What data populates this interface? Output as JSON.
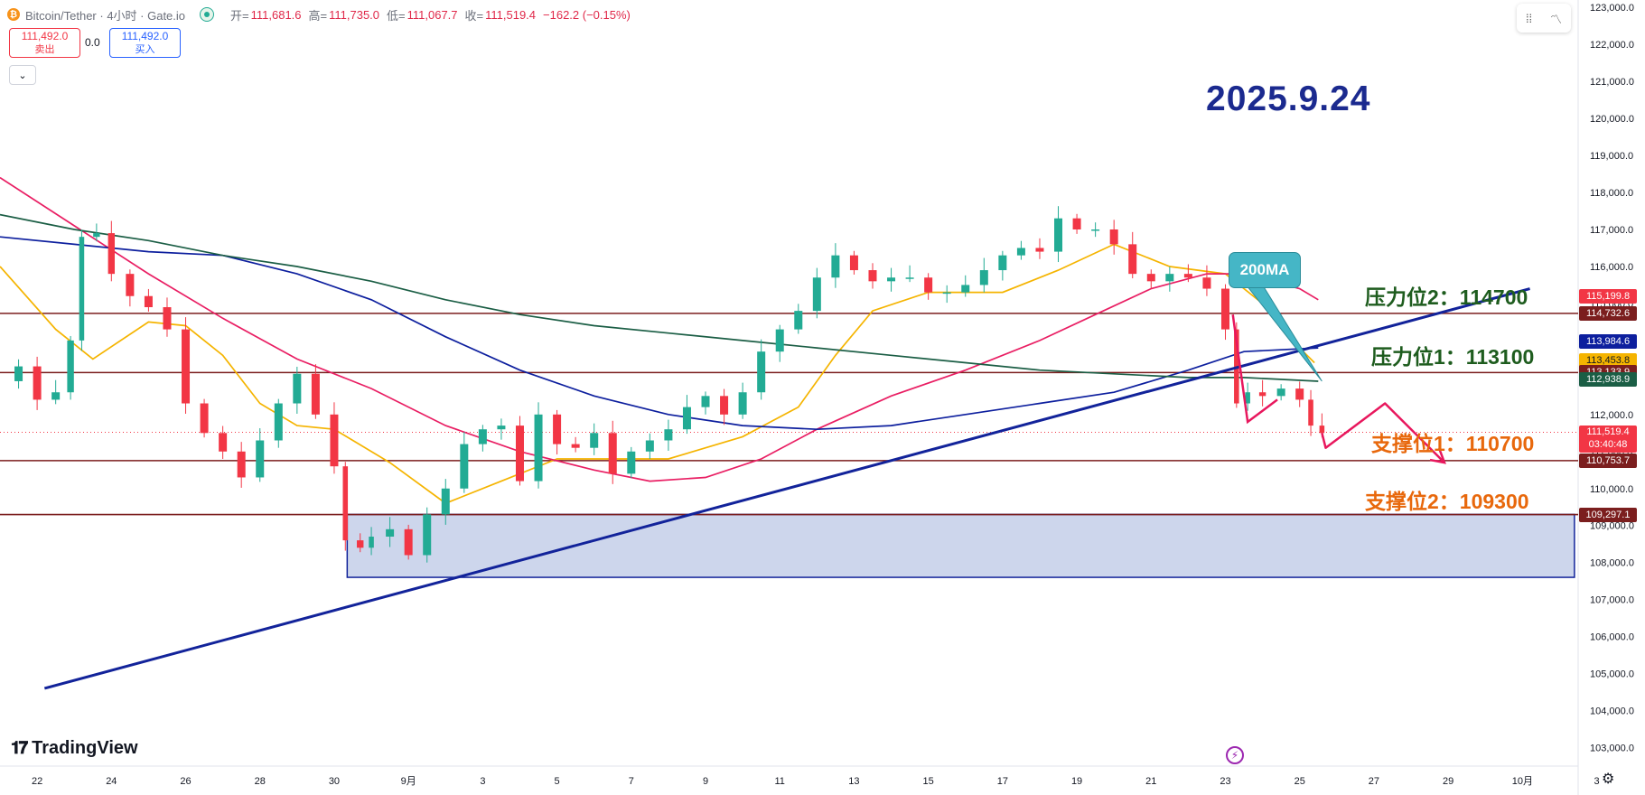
{
  "header": {
    "coin_symbol": "₿",
    "title": "Bitcoin/Tether · 4小时 · Gate.io",
    "open_label": "开=",
    "open": "111,681.6",
    "high_label": "高=",
    "high": "111,735.0",
    "low_label": "低=",
    "low": "111,067.7",
    "close_label": "收=",
    "close": "111,519.4",
    "change": "−162.2 (−0.15%)"
  },
  "trade": {
    "sell_price": "111,492.0",
    "sell_label": "卖出",
    "spread": "0.0",
    "buy_price": "111,492.0",
    "buy_label": "买入"
  },
  "overlay": {
    "date": "2025.9.24",
    "resistance2": "压力位2：114700",
    "resistance1": "压力位1：113100",
    "support1": "支撑位1：110700",
    "support2": "支撑位2：109300",
    "ma_callout": "200MA"
  },
  "brand": "TradingView",
  "colors": {
    "up": "#22ab94",
    "down": "#f23645",
    "ma20": "#f5b400",
    "ma50": "#e91e63",
    "ma100": "#0d1f9e",
    "ma200": "#1b5e45",
    "trendline": "#12239a",
    "level_line": "#7b1e1e",
    "zone_fill": "#cdd6ec",
    "annotation": "#e8175d"
  },
  "chart_data": {
    "type": "candlestick",
    "symbol": "BTC/USDT",
    "timeframe": "4小时",
    "ylim": [
      102500,
      123200
    ],
    "y_ticks": [
      103000,
      104000,
      105000,
      106000,
      107000,
      108000,
      109000,
      110000,
      111000,
      112000,
      113000,
      114000,
      115000,
      116000,
      117000,
      118000,
      119000,
      120000,
      121000,
      122000,
      123000
    ],
    "y_tick_labels": [
      "103,000.0",
      "104,000.0",
      "105,000.0",
      "106,000.0",
      "107,000.0",
      "108,000.0",
      "109,000.0",
      "110,000.0",
      "111,000.0",
      "112,000.0",
      "113,000.0",
      "114,000.0",
      "115,000.0",
      "116,000.0",
      "117,000.0",
      "118,000.0",
      "119,000.0",
      "120,000.0",
      "121,000.0",
      "122,000.0",
      "123,000.0"
    ],
    "x_tick_labels": [
      "22",
      "24",
      "26",
      "28",
      "30",
      "9月",
      "3",
      "5",
      "7",
      "9",
      "11",
      "13",
      "15",
      "17",
      "19",
      "21",
      "23",
      "25",
      "27",
      "29",
      "10月",
      "3"
    ],
    "x_range_days": [
      0,
      42.5
    ],
    "x_tick_days": [
      1,
      3,
      5,
      7,
      9,
      11,
      13,
      15,
      17,
      19,
      21,
      23,
      25,
      27,
      29,
      31,
      33,
      35,
      37,
      39,
      41,
      43
    ],
    "close_points": [
      [
        0,
        112900
      ],
      [
        0.5,
        113300
      ],
      [
        1,
        112400
      ],
      [
        1.5,
        112600
      ],
      [
        1.9,
        114000
      ],
      [
        2.2,
        116800
      ],
      [
        2.6,
        116900
      ],
      [
        3,
        115800
      ],
      [
        3.5,
        115200
      ],
      [
        4,
        114900
      ],
      [
        4.5,
        114300
      ],
      [
        5,
        112300
      ],
      [
        5.5,
        111500
      ],
      [
        6,
        111000
      ],
      [
        6.5,
        110300
      ],
      [
        7,
        111300
      ],
      [
        7.5,
        112300
      ],
      [
        8,
        113100
      ],
      [
        8.5,
        112000
      ],
      [
        9,
        110600
      ],
      [
        9.3,
        108600
      ],
      [
        9.7,
        108400
      ],
      [
        10,
        108700
      ],
      [
        10.5,
        108900
      ],
      [
        11,
        108200
      ],
      [
        11.5,
        109300
      ],
      [
        12,
        110000
      ],
      [
        12.5,
        111200
      ],
      [
        13,
        111600
      ],
      [
        13.5,
        111700
      ],
      [
        14,
        110200
      ],
      [
        14.5,
        112000
      ],
      [
        15,
        111200
      ],
      [
        15.5,
        111100
      ],
      [
        16,
        111500
      ],
      [
        16.5,
        110400
      ],
      [
        17,
        111000
      ],
      [
        17.5,
        111300
      ],
      [
        18,
        111600
      ],
      [
        18.5,
        112200
      ],
      [
        19,
        112500
      ],
      [
        19.5,
        112000
      ],
      [
        20,
        112600
      ],
      [
        20.5,
        113700
      ],
      [
        21,
        114300
      ],
      [
        21.5,
        114800
      ],
      [
        22,
        115700
      ],
      [
        22.5,
        116300
      ],
      [
        23,
        115900
      ],
      [
        23.5,
        115600
      ],
      [
        24,
        115700
      ],
      [
        24.5,
        115700
      ],
      [
        25,
        115300
      ],
      [
        25.5,
        115300
      ],
      [
        26,
        115500
      ],
      [
        26.5,
        115900
      ],
      [
        27,
        116300
      ],
      [
        27.5,
        116500
      ],
      [
        28,
        116400
      ],
      [
        28.5,
        117300
      ],
      [
        29,
        117000
      ],
      [
        29.5,
        117000
      ],
      [
        30,
        116600
      ],
      [
        30.5,
        115800
      ],
      [
        31,
        115600
      ],
      [
        31.5,
        115800
      ],
      [
        32,
        115700
      ],
      [
        32.5,
        115400
      ],
      [
        33,
        114300
      ],
      [
        33.3,
        112300
      ],
      [
        33.6,
        112600
      ],
      [
        34,
        112500
      ],
      [
        34.5,
        112700
      ],
      [
        35,
        112400
      ],
      [
        35.3,
        111700
      ],
      [
        35.6,
        111500
      ]
    ],
    "last_price": 111519.4,
    "countdown": "03:40:48",
    "moving_averages": [
      {
        "name": "MA20",
        "points": [
          [
            0,
            116000
          ],
          [
            1.5,
            114300
          ],
          [
            2.5,
            113500
          ],
          [
            4,
            114500
          ],
          [
            5,
            114400
          ],
          [
            6,
            113600
          ],
          [
            7,
            112300
          ],
          [
            8,
            111700
          ],
          [
            9,
            111600
          ],
          [
            10.5,
            110700
          ],
          [
            12,
            109600
          ],
          [
            13.5,
            110200
          ],
          [
            15,
            110800
          ],
          [
            16.5,
            110800
          ],
          [
            18,
            110800
          ],
          [
            20,
            111400
          ],
          [
            21.5,
            112200
          ],
          [
            22.5,
            113600
          ],
          [
            23.5,
            114800
          ],
          [
            25,
            115300
          ],
          [
            27,
            115300
          ],
          [
            28.5,
            115900
          ],
          [
            30,
            116600
          ],
          [
            31.5,
            116000
          ],
          [
            33,
            115800
          ],
          [
            34,
            115000
          ],
          [
            35,
            113800
          ],
          [
            35.4,
            113400
          ]
        ]
      },
      {
        "name": "MA50",
        "points": [
          [
            0,
            118400
          ],
          [
            2,
            117100
          ],
          [
            4,
            115800
          ],
          [
            6,
            114600
          ],
          [
            8,
            113500
          ],
          [
            10,
            112700
          ],
          [
            12,
            111700
          ],
          [
            14,
            111000
          ],
          [
            16,
            110500
          ],
          [
            17.5,
            110200
          ],
          [
            19,
            110300
          ],
          [
            20.5,
            110800
          ],
          [
            22,
            111600
          ],
          [
            24,
            112500
          ],
          [
            26,
            113200
          ],
          [
            28,
            114000
          ],
          [
            29.5,
            114700
          ],
          [
            31,
            115400
          ],
          [
            32.5,
            115800
          ],
          [
            33.5,
            115800
          ],
          [
            35,
            115400
          ],
          [
            35.5,
            115100
          ]
        ]
      },
      {
        "name": "MA100",
        "points": [
          [
            0,
            116800
          ],
          [
            2,
            116600
          ],
          [
            4,
            116400
          ],
          [
            6,
            116300
          ],
          [
            8,
            115800
          ],
          [
            10,
            115100
          ],
          [
            12,
            114100
          ],
          [
            14,
            113200
          ],
          [
            16,
            112500
          ],
          [
            18,
            112000
          ],
          [
            20,
            111700
          ],
          [
            22,
            111600
          ],
          [
            24,
            111700
          ],
          [
            26,
            112000
          ],
          [
            28,
            112300
          ],
          [
            30,
            112600
          ],
          [
            32,
            113200
          ],
          [
            33.5,
            113700
          ],
          [
            35.5,
            113800
          ]
        ]
      },
      {
        "name": "MA200",
        "points": [
          [
            0,
            117400
          ],
          [
            2,
            117000
          ],
          [
            4,
            116700
          ],
          [
            6,
            116300
          ],
          [
            8,
            116000
          ],
          [
            10,
            115600
          ],
          [
            12,
            115100
          ],
          [
            14,
            114700
          ],
          [
            16,
            114400
          ],
          [
            18,
            114200
          ],
          [
            20,
            114000
          ],
          [
            22,
            113800
          ],
          [
            24,
            113600
          ],
          [
            26,
            113400
          ],
          [
            28,
            113200
          ],
          [
            30,
            113100
          ],
          [
            32,
            113000
          ],
          [
            33.5,
            113000
          ],
          [
            35.5,
            112900
          ]
        ]
      }
    ],
    "trendline": {
      "from": [
        1.2,
        104600
      ],
      "to": [
        41.2,
        115400
      ]
    },
    "level_lines": [
      114732.6,
      113133.9,
      110753.7,
      109297.1
    ],
    "support_zone": {
      "x0_day": 9.35,
      "x1_day": 42.4,
      "top": 109300,
      "bottom": 107600
    },
    "projection_path": [
      [
        35.7,
        111100
      ],
      [
        37.3,
        112300
      ],
      [
        38.9,
        110700
      ]
    ],
    "callout_target": [
      35.6,
      112900
    ],
    "price_tags": [
      {
        "value": 115199.8,
        "text": "115,199.8",
        "color": "#f23645"
      },
      {
        "value": 114732.6,
        "text": "114,732.6",
        "color": "#7b1e1e"
      },
      {
        "value": 113984.6,
        "text": "113,984.6",
        "color": "#0d1f9e"
      },
      {
        "value": 113453.8,
        "text": "113,453.8",
        "color": "#f5b400"
      },
      {
        "value": 113133.9,
        "text": "113,133.9",
        "color": "#7b1e1e"
      },
      {
        "value": 112938.9,
        "text": "112,938.9",
        "color": "#1b5e45"
      },
      {
        "value": 111519.4,
        "text": "111,519.4",
        "color": "#f23645",
        "sub": "03:40:48"
      },
      {
        "value": 110753.7,
        "text": "110,753.7",
        "color": "#7b1e1e"
      },
      {
        "value": 109297.1,
        "text": "109,297.1",
        "color": "#7b1e1e"
      }
    ]
  }
}
